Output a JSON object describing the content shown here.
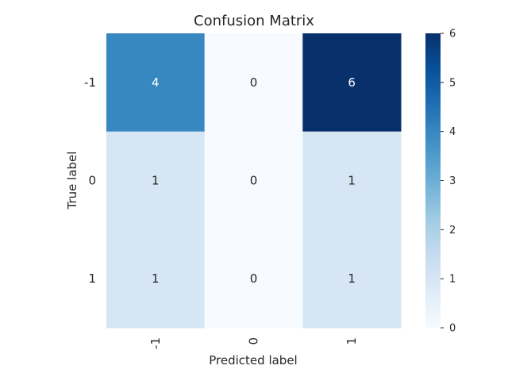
{
  "chart_data": {
    "type": "heatmap",
    "title": "Confusion Matrix",
    "xlabel": "Predicted label",
    "ylabel": "True label",
    "x_categories": [
      "-1",
      "0",
      "1"
    ],
    "y_categories": [
      "-1",
      "0",
      "1"
    ],
    "values": [
      [
        4,
        0,
        6
      ],
      [
        1,
        0,
        1
      ],
      [
        1,
        0,
        1
      ]
    ],
    "colorbar": {
      "min": 0,
      "max": 6,
      "ticks": [
        "0",
        "1",
        "2",
        "3",
        "4",
        "5",
        "6"
      ],
      "colormap": "Blues"
    },
    "grid": false
  }
}
